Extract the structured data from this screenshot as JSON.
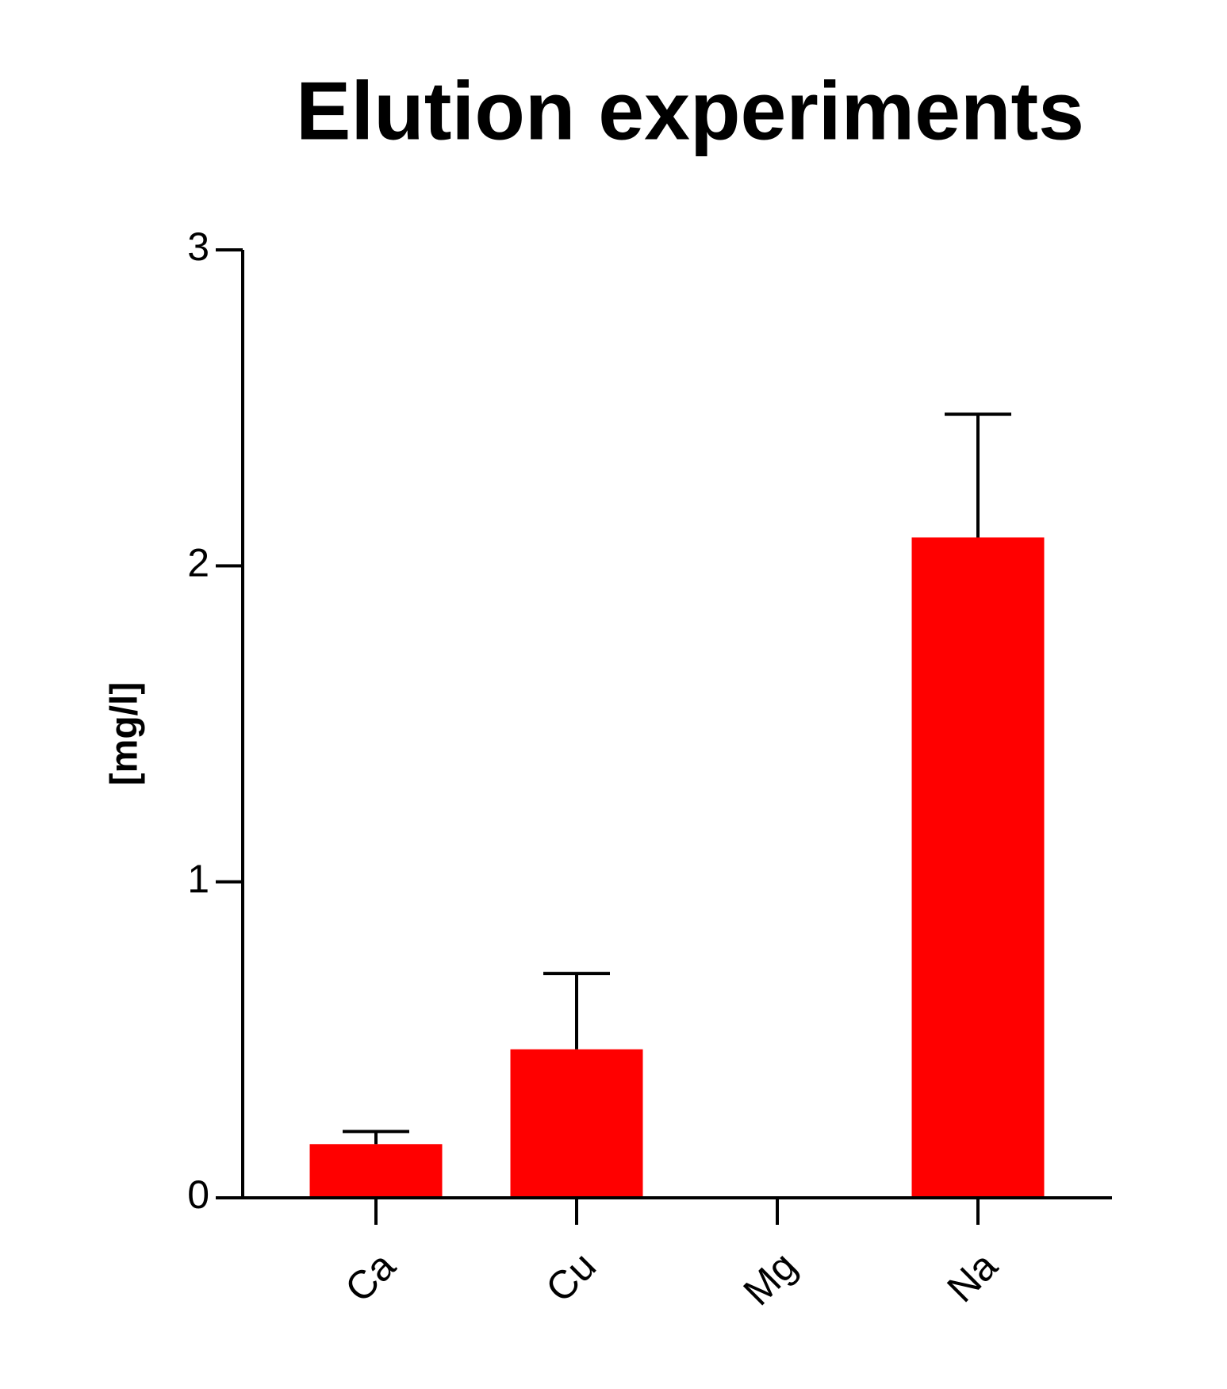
{
  "chart_data": {
    "type": "bar",
    "title": "Elution experiments",
    "y_label": "[mg/l]",
    "categories": [
      "Ca",
      "Cu",
      "Mg",
      "Na"
    ],
    "values": [
      0.17,
      0.47,
      0,
      2.09
    ],
    "errors": [
      0.04,
      0.24,
      null,
      0.39
    ],
    "color": "#ff0000",
    "ylim": [
      0,
      3
    ],
    "yticks": [
      0,
      1,
      2,
      3
    ]
  }
}
